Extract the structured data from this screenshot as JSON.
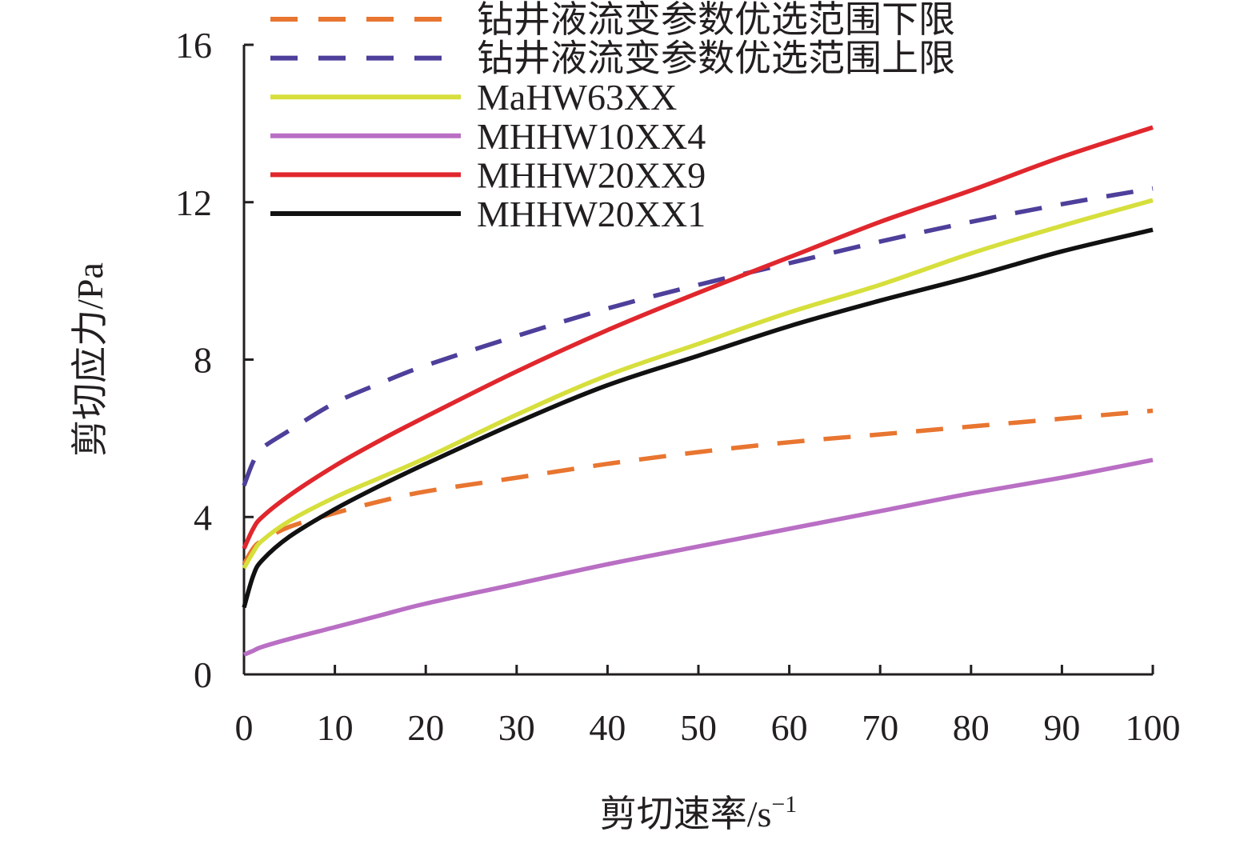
{
  "chart_data": {
    "type": "line",
    "title": "",
    "xlabel": "剪切速率/s",
    "xlabel_sup": "−1",
    "ylabel": "剪切应力/Pa",
    "xlim": [
      0,
      100
    ],
    "ylim": [
      0,
      16
    ],
    "xticks": [
      0,
      10,
      20,
      30,
      40,
      50,
      60,
      70,
      80,
      90,
      100
    ],
    "yticks": [
      0,
      4,
      8,
      12,
      16
    ],
    "grid": false,
    "legend_position": "top-left",
    "x": [
      0,
      1,
      2,
      5,
      10,
      15,
      20,
      30,
      40,
      50,
      60,
      70,
      80,
      90,
      100
    ],
    "series": [
      {
        "name": "钻井液流变参数优选范围下限",
        "color": "#e87530",
        "dash": true,
        "values": [
          2.8,
          3.2,
          3.4,
          3.75,
          4.1,
          4.4,
          4.65,
          5.0,
          5.35,
          5.65,
          5.9,
          6.1,
          6.3,
          6.5,
          6.7
        ]
      },
      {
        "name": "钻井液流变参数优选范围上限",
        "color": "#4d3f9a",
        "dash": true,
        "values": [
          4.8,
          5.4,
          5.75,
          6.2,
          6.9,
          7.4,
          7.85,
          8.6,
          9.3,
          9.9,
          10.45,
          11.0,
          11.5,
          11.95,
          12.35
        ]
      },
      {
        "name": "MaHW63XX",
        "color": "#d6df3c",
        "dash": false,
        "values": [
          2.7,
          3.1,
          3.4,
          3.9,
          4.5,
          5.0,
          5.5,
          6.6,
          7.6,
          8.4,
          9.2,
          9.9,
          10.7,
          11.4,
          12.05
        ]
      },
      {
        "name": "MHHW10XX4",
        "color": "#b96fc4",
        "dash": false,
        "values": [
          0.5,
          0.6,
          0.7,
          0.9,
          1.2,
          1.5,
          1.8,
          2.3,
          2.8,
          3.25,
          3.7,
          4.15,
          4.6,
          5.0,
          5.45
        ]
      },
      {
        "name": "MHHW20XX9",
        "color": "#e0272d",
        "dash": false,
        "values": [
          3.2,
          3.7,
          4.0,
          4.55,
          5.3,
          5.95,
          6.55,
          7.7,
          8.75,
          9.7,
          10.6,
          11.5,
          12.3,
          13.15,
          13.9
        ]
      },
      {
        "name": "MHHW20XX1",
        "color": "#111111",
        "dash": false,
        "values": [
          1.7,
          2.5,
          2.9,
          3.5,
          4.2,
          4.8,
          5.35,
          6.4,
          7.35,
          8.1,
          8.85,
          9.5,
          10.1,
          10.75,
          11.3
        ]
      }
    ]
  }
}
